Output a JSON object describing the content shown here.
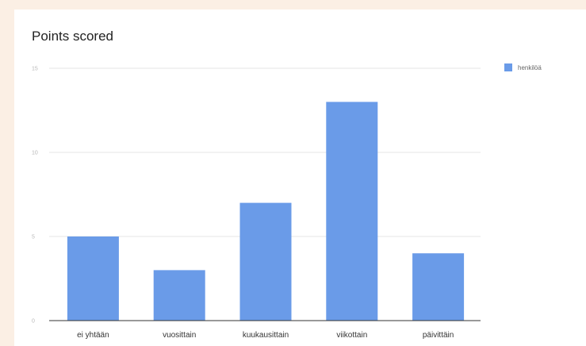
{
  "chart_data": {
    "type": "bar",
    "title": "Points scored",
    "categories": [
      "ei yhtään",
      "vuosittain",
      "kuukausittain",
      "viikottain",
      "päivittäin"
    ],
    "series": [
      {
        "name": "henkilöä",
        "values": [
          5,
          3,
          7,
          13,
          4
        ],
        "color": "#6a9be8"
      }
    ],
    "yticks": [
      "0",
      "5",
      "10",
      "15"
    ],
    "ylim": [
      0,
      15
    ],
    "grid": true,
    "legend_position": "top-right"
  }
}
